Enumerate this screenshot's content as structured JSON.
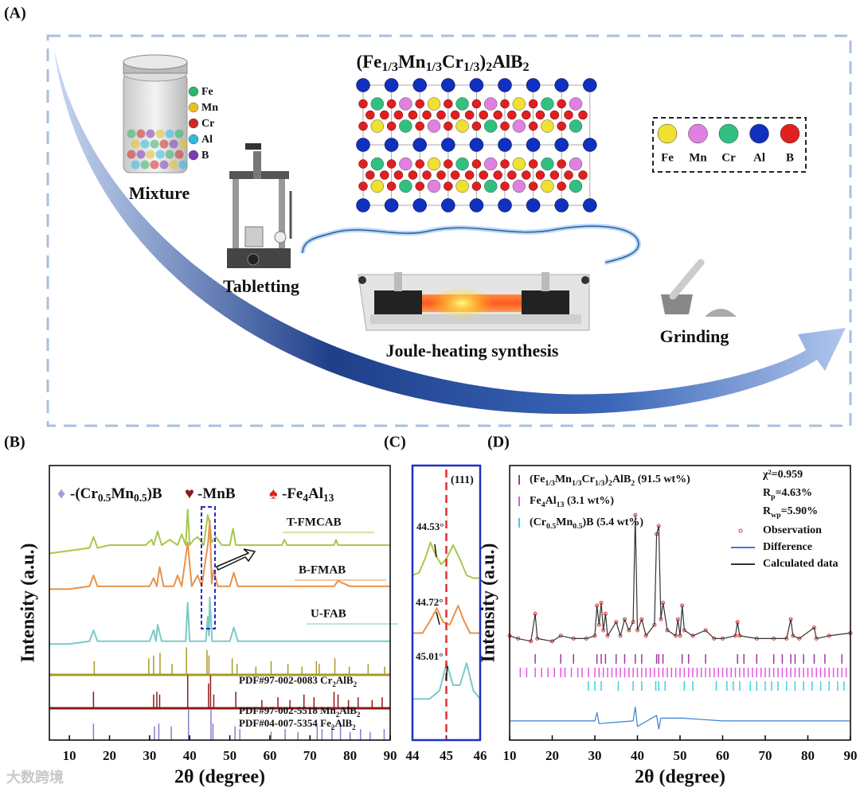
{
  "watermark": "大数跨境",
  "panel_a": {
    "label": "(A)",
    "title": [
      "(Fe",
      "1/3",
      "Mn",
      "1/3",
      "Cr",
      "1/3",
      ")",
      "2",
      "AlB",
      "2"
    ],
    "steps": {
      "mixture": "Mixture",
      "tabletting": "Tabletting",
      "joule": "Joule-heating synthesis",
      "grinding": "Grinding"
    },
    "mixture_legend": [
      {
        "name": "Fe",
        "color": "#2fb56a"
      },
      {
        "name": "Mn",
        "color": "#e8c020"
      },
      {
        "name": "Cr",
        "color": "#d02828"
      },
      {
        "name": "Al",
        "color": "#30b8e0"
      },
      {
        "name": "B",
        "color": "#7a3db0"
      }
    ],
    "crystal_legend": [
      {
        "name": "Fe",
        "color": "#f0e030"
      },
      {
        "name": "Mn",
        "color": "#e080e0"
      },
      {
        "name": "Cr",
        "color": "#30c080"
      },
      {
        "name": "Al",
        "color": "#1030c0"
      },
      {
        "name": "B",
        "color": "#e02020"
      }
    ]
  },
  "chart_data": [
    {
      "type": "line",
      "label": "(B)",
      "xlabel": "2θ (degree)",
      "ylabel": "Intensity (a.u.)",
      "xlim": [
        5,
        90
      ],
      "ylim": [
        0,
        100
      ],
      "xticks": [
        10,
        20,
        30,
        40,
        50,
        60,
        70,
        80,
        90
      ],
      "legend": [
        {
          "symbol": "♦",
          "color": "#a89ad8",
          "text": [
            "-(Cr",
            "0.5",
            "Mn",
            "0.5",
            ")B"
          ]
        },
        {
          "symbol": "♥",
          "color": "#8b1a1a",
          "text": [
            "-MnB"
          ]
        },
        {
          "symbol": "♠",
          "color": "#e02020",
          "text": [
            "-Fe",
            "4",
            "Al",
            "13"
          ]
        }
      ],
      "series": [
        {
          "name": "T-FMCAB",
          "color": "#a8c84a",
          "x": [
            5,
            10,
            15,
            16,
            17,
            20,
            25,
            29,
            30.5,
            31,
            32,
            33,
            35,
            37,
            38,
            39,
            39.5,
            40,
            41,
            42,
            43.5,
            44.5,
            45,
            45.5,
            46.5,
            48,
            50,
            50.8,
            51.5,
            55,
            60,
            63,
            63.6,
            64.3,
            68,
            72,
            76,
            76.5,
            77,
            80,
            85,
            90
          ],
          "values": [
            68,
            69,
            70,
            74,
            70,
            71,
            71,
            71,
            73,
            71,
            76,
            71,
            73,
            71,
            75,
            71,
            84,
            71,
            73,
            74,
            71,
            82,
            79,
            72,
            74,
            71,
            71,
            77,
            71,
            71,
            71,
            71,
            73,
            71,
            71,
            71,
            71,
            73,
            71,
            71,
            71,
            71
          ]
        },
        {
          "name": "B-FMAB",
          "color": "#e8924a",
          "x": [
            5,
            10,
            15,
            16,
            17,
            25,
            30,
            31,
            31.8,
            32.5,
            33.5,
            36,
            37,
            38,
            39.5,
            40.5,
            42,
            43,
            44.6,
            45,
            45.5,
            46,
            47,
            50,
            51,
            52,
            60,
            70,
            76,
            77,
            80,
            90
          ],
          "values": [
            55,
            55,
            56,
            60,
            56,
            56,
            56,
            59,
            56,
            63,
            56,
            56,
            60,
            56,
            72,
            56,
            60,
            56,
            72,
            80,
            57,
            62,
            56,
            56,
            61,
            56,
            56,
            56,
            56,
            58,
            56,
            56
          ]
        },
        {
          "name": "U-FAB",
          "color": "#7cc9c9",
          "x": [
            5,
            10,
            15,
            16,
            17,
            25,
            30,
            31,
            31.6,
            32,
            33,
            39,
            39.5,
            40,
            44,
            44.5,
            44.8,
            45,
            45.6,
            50,
            51,
            52,
            60,
            70,
            80,
            90
          ],
          "values": [
            35,
            35,
            36,
            40,
            36,
            36,
            36,
            40,
            36,
            42,
            36,
            36,
            50,
            36,
            36,
            45,
            38,
            52,
            36,
            36,
            41,
            36,
            36,
            36,
            36,
            36
          ]
        }
      ],
      "references": [
        {
          "name": [
            "PDF#97-002-0083 Cr",
            "2",
            "AlB",
            "2"
          ],
          "color": "#a89a2a",
          "x": [
            16.2,
            29.8,
            31,
            32.6,
            35.6,
            39.2,
            44.3,
            44.8,
            50.6,
            51.8,
            56.5,
            60.3,
            64.5,
            68,
            71.6,
            72.3,
            76.2,
            79.8,
            84.5,
            88.6
          ],
          "values": [
            5,
            6,
            7,
            8,
            4,
            10,
            9,
            7,
            6,
            4,
            3,
            5,
            4,
            3,
            5,
            4,
            6,
            3,
            4,
            3
          ]
        },
        {
          "name": [
            "PDF#97-002-5518 Mn",
            "2",
            "AlB",
            "2"
          ],
          "color": "#8b1a1a",
          "x": [
            16,
            31,
            31.8,
            32.5,
            39.5,
            44.7,
            45.2,
            46,
            51.5,
            58,
            62,
            65,
            68.5,
            71,
            76,
            77,
            79.6,
            82,
            85.5,
            88
          ],
          "values": [
            6,
            5,
            6,
            5,
            12,
            9,
            12,
            5,
            6,
            3,
            4,
            3,
            5,
            4,
            6,
            5,
            3,
            4,
            3,
            4
          ]
        },
        {
          "name": [
            "PDF#04-007-5354 Fe",
            "2",
            "AlB",
            "2"
          ],
          "color": "#8080d0",
          "x": [
            16,
            31.2,
            32.3,
            35.4,
            39.7,
            45.3,
            45.8,
            51.3,
            52.5,
            60.3,
            63.8,
            67,
            71.8,
            73,
            75.5,
            77.6,
            80,
            82.6,
            85,
            88.5
          ],
          "values": [
            6,
            5,
            6,
            5,
            11,
            11,
            6,
            5,
            4,
            3,
            4,
            3,
            5,
            4,
            5,
            6,
            3,
            4,
            3,
            4
          ]
        }
      ]
    },
    {
      "type": "line",
      "label": "(C)",
      "peak_label": "(111)",
      "reference_x": 45,
      "xlim": [
        44,
        46
      ],
      "ylim": [
        0,
        100
      ],
      "xticks": [
        44,
        45,
        46
      ],
      "annotations": [
        "44.53°",
        "44.72°",
        "45.01°"
      ],
      "series": [
        {
          "color": "#a8c84a",
          "x": [
            44,
            44.2,
            44.4,
            44.53,
            44.7,
            44.85,
            45,
            45.2,
            45.4,
            45.6,
            45.8,
            46
          ],
          "values": [
            60,
            61,
            67,
            72,
            67,
            64,
            66,
            71,
            66,
            60,
            59,
            59
          ]
        },
        {
          "color": "#e8924a",
          "x": [
            44,
            44.3,
            44.5,
            44.72,
            44.9,
            45.1,
            45.35,
            45.5,
            45.7,
            46
          ],
          "values": [
            39,
            39,
            43,
            48,
            43,
            42,
            49,
            44,
            39,
            39
          ]
        },
        {
          "color": "#7cc9c9",
          "x": [
            44,
            44.5,
            44.8,
            45.01,
            45.2,
            45.4,
            45.6,
            45.8,
            46
          ],
          "values": [
            15,
            15,
            18,
            28,
            20,
            20,
            28,
            18,
            15
          ]
        }
      ]
    },
    {
      "type": "line",
      "label": "(D)",
      "xlabel": "2θ (degree)",
      "ylabel": "Intensity (a.u.)",
      "xlim": [
        10,
        90
      ],
      "ylim": [
        0,
        100
      ],
      "xticks": [
        10,
        20,
        30,
        40,
        50,
        60,
        70,
        80,
        90
      ],
      "stats": [
        [
          "χ²=0.959"
        ],
        [
          "R",
          "p",
          "=4.63%"
        ],
        [
          "R",
          "wp",
          "=5.90%"
        ]
      ],
      "phases": [
        {
          "name": [
            "(Fe",
            "1/3",
            "Mn",
            "1/3",
            "Cr",
            "1/3",
            ")",
            "2",
            "AlB",
            "2",
            " (91.5 wt%)"
          ],
          "color": "#9a3aa0",
          "positions": [
            16,
            22,
            25,
            30.5,
            31.5,
            32.5,
            35,
            37,
            39.5,
            41,
            44.5,
            45,
            46,
            50.5,
            52,
            56,
            63.5,
            65,
            68,
            72,
            74,
            76,
            77,
            79,
            81.5,
            84,
            88
          ]
        },
        {
          "name": [
            "Fe",
            "4",
            "Al",
            "13",
            " (3.1 wt%)"
          ],
          "color": "#e455e4",
          "positions": [
            12.5,
            14,
            16,
            17.5,
            19,
            20.5,
            22,
            23,
            24.5,
            26,
            27,
            28.5,
            30,
            31,
            32,
            33,
            34,
            35,
            36,
            37,
            38,
            39,
            40,
            41,
            42,
            43,
            44,
            45,
            46,
            47,
            48,
            49,
            50,
            51,
            52,
            53,
            54,
            55,
            56,
            57,
            58,
            59,
            60,
            61,
            62,
            63,
            64,
            65,
            66,
            67,
            68,
            69,
            70,
            71,
            72,
            73,
            74,
            75,
            76,
            77,
            78,
            79,
            80,
            81,
            82,
            83,
            84,
            85,
            86,
            87,
            88,
            89
          ]
        },
        {
          "name": [
            "(Cr",
            "0.5",
            "Mn",
            "0.5",
            ")B (5.4 wt%)"
          ],
          "color": "#3fd0e0",
          "positions": [
            28.5,
            30,
            31.5,
            35.5,
            39,
            41,
            44.3,
            45,
            46.5,
            51,
            53,
            58.5,
            61,
            62.5,
            64,
            66.5,
            68,
            70,
            71.5,
            73,
            75,
            77,
            79,
            81,
            83,
            85,
            87,
            88.5
          ]
        }
      ],
      "series": [
        {
          "name": "Observation",
          "color": "#e03030",
          "mode": "markers",
          "x": [
            10,
            12,
            15,
            16,
            16.5,
            20,
            22,
            25,
            28,
            30,
            30.5,
            31,
            31.5,
            32,
            32.5,
            33,
            35,
            36,
            37,
            38,
            39,
            39.5,
            40,
            41,
            42,
            44,
            44.5,
            45,
            45.5,
            46,
            47,
            49,
            49.5,
            50,
            50.5,
            51,
            53,
            56,
            58,
            60,
            63,
            63.5,
            64,
            68,
            72,
            75,
            76,
            76.5,
            78,
            81.5,
            82,
            85,
            90
          ],
          "values": [
            38,
            37,
            36,
            46,
            37,
            36,
            38,
            37,
            37,
            38,
            49,
            42,
            50,
            40,
            46,
            38,
            43,
            38,
            44,
            40,
            43,
            82,
            40,
            44,
            38,
            42,
            75,
            78,
            44,
            50,
            40,
            38,
            44,
            38,
            49,
            40,
            38,
            40,
            37,
            37,
            38,
            43,
            38,
            37,
            37,
            37,
            44,
            38,
            37,
            41,
            37,
            38,
            39
          ]
        },
        {
          "name": "Difference",
          "color": "#3a80d0",
          "mode": "lines",
          "x": [
            10,
            20,
            30,
            30.5,
            31,
            39,
            39.5,
            40,
            44.5,
            45,
            45.5,
            50.5,
            60,
            70,
            80,
            90
          ],
          "values": [
            7,
            7,
            7,
            10,
            6,
            7,
            12,
            5,
            9,
            4,
            8,
            8,
            7,
            7,
            7,
            7
          ]
        },
        {
          "name": "Calculated data",
          "color": "#333333",
          "mode": "lines",
          "x": [
            10,
            12,
            15,
            16,
            16.5,
            20,
            22,
            25,
            28,
            30,
            30.5,
            31,
            31.5,
            32,
            32.5,
            33,
            35,
            36,
            37,
            38,
            39,
            39.5,
            40,
            41,
            42,
            44,
            44.5,
            45,
            45.5,
            46,
            47,
            49,
            49.5,
            50,
            50.5,
            51,
            53,
            56,
            58,
            60,
            63,
            63.5,
            64,
            68,
            72,
            75,
            76,
            76.5,
            78,
            81.5,
            82,
            85,
            90
          ],
          "values": [
            38,
            37,
            36,
            46,
            37,
            36,
            38,
            37,
            37,
            38,
            49,
            42,
            50,
            40,
            46,
            38,
            43,
            38,
            44,
            40,
            43,
            82,
            40,
            44,
            38,
            42,
            75,
            78,
            44,
            50,
            40,
            38,
            44,
            38,
            49,
            40,
            38,
            40,
            37,
            37,
            38,
            43,
            38,
            37,
            37,
            37,
            44,
            38,
            37,
            41,
            37,
            38,
            39
          ]
        }
      ]
    }
  ]
}
